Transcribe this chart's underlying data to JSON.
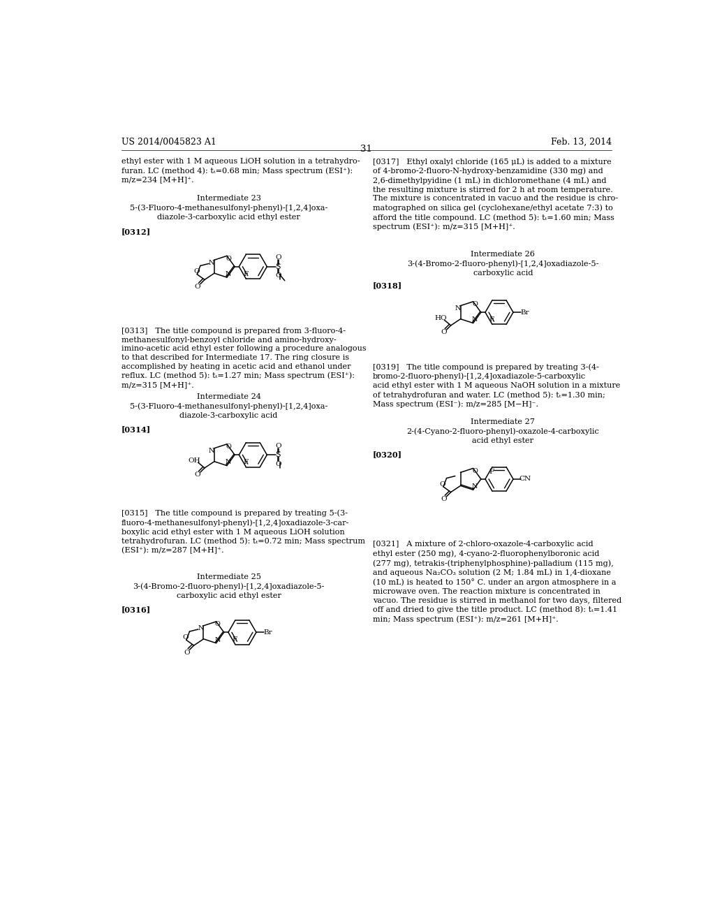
{
  "background_color": "#ffffff",
  "header_left": "US 2014/0045823 A1",
  "header_right": "Feb. 13, 2014",
  "page_number": "31"
}
